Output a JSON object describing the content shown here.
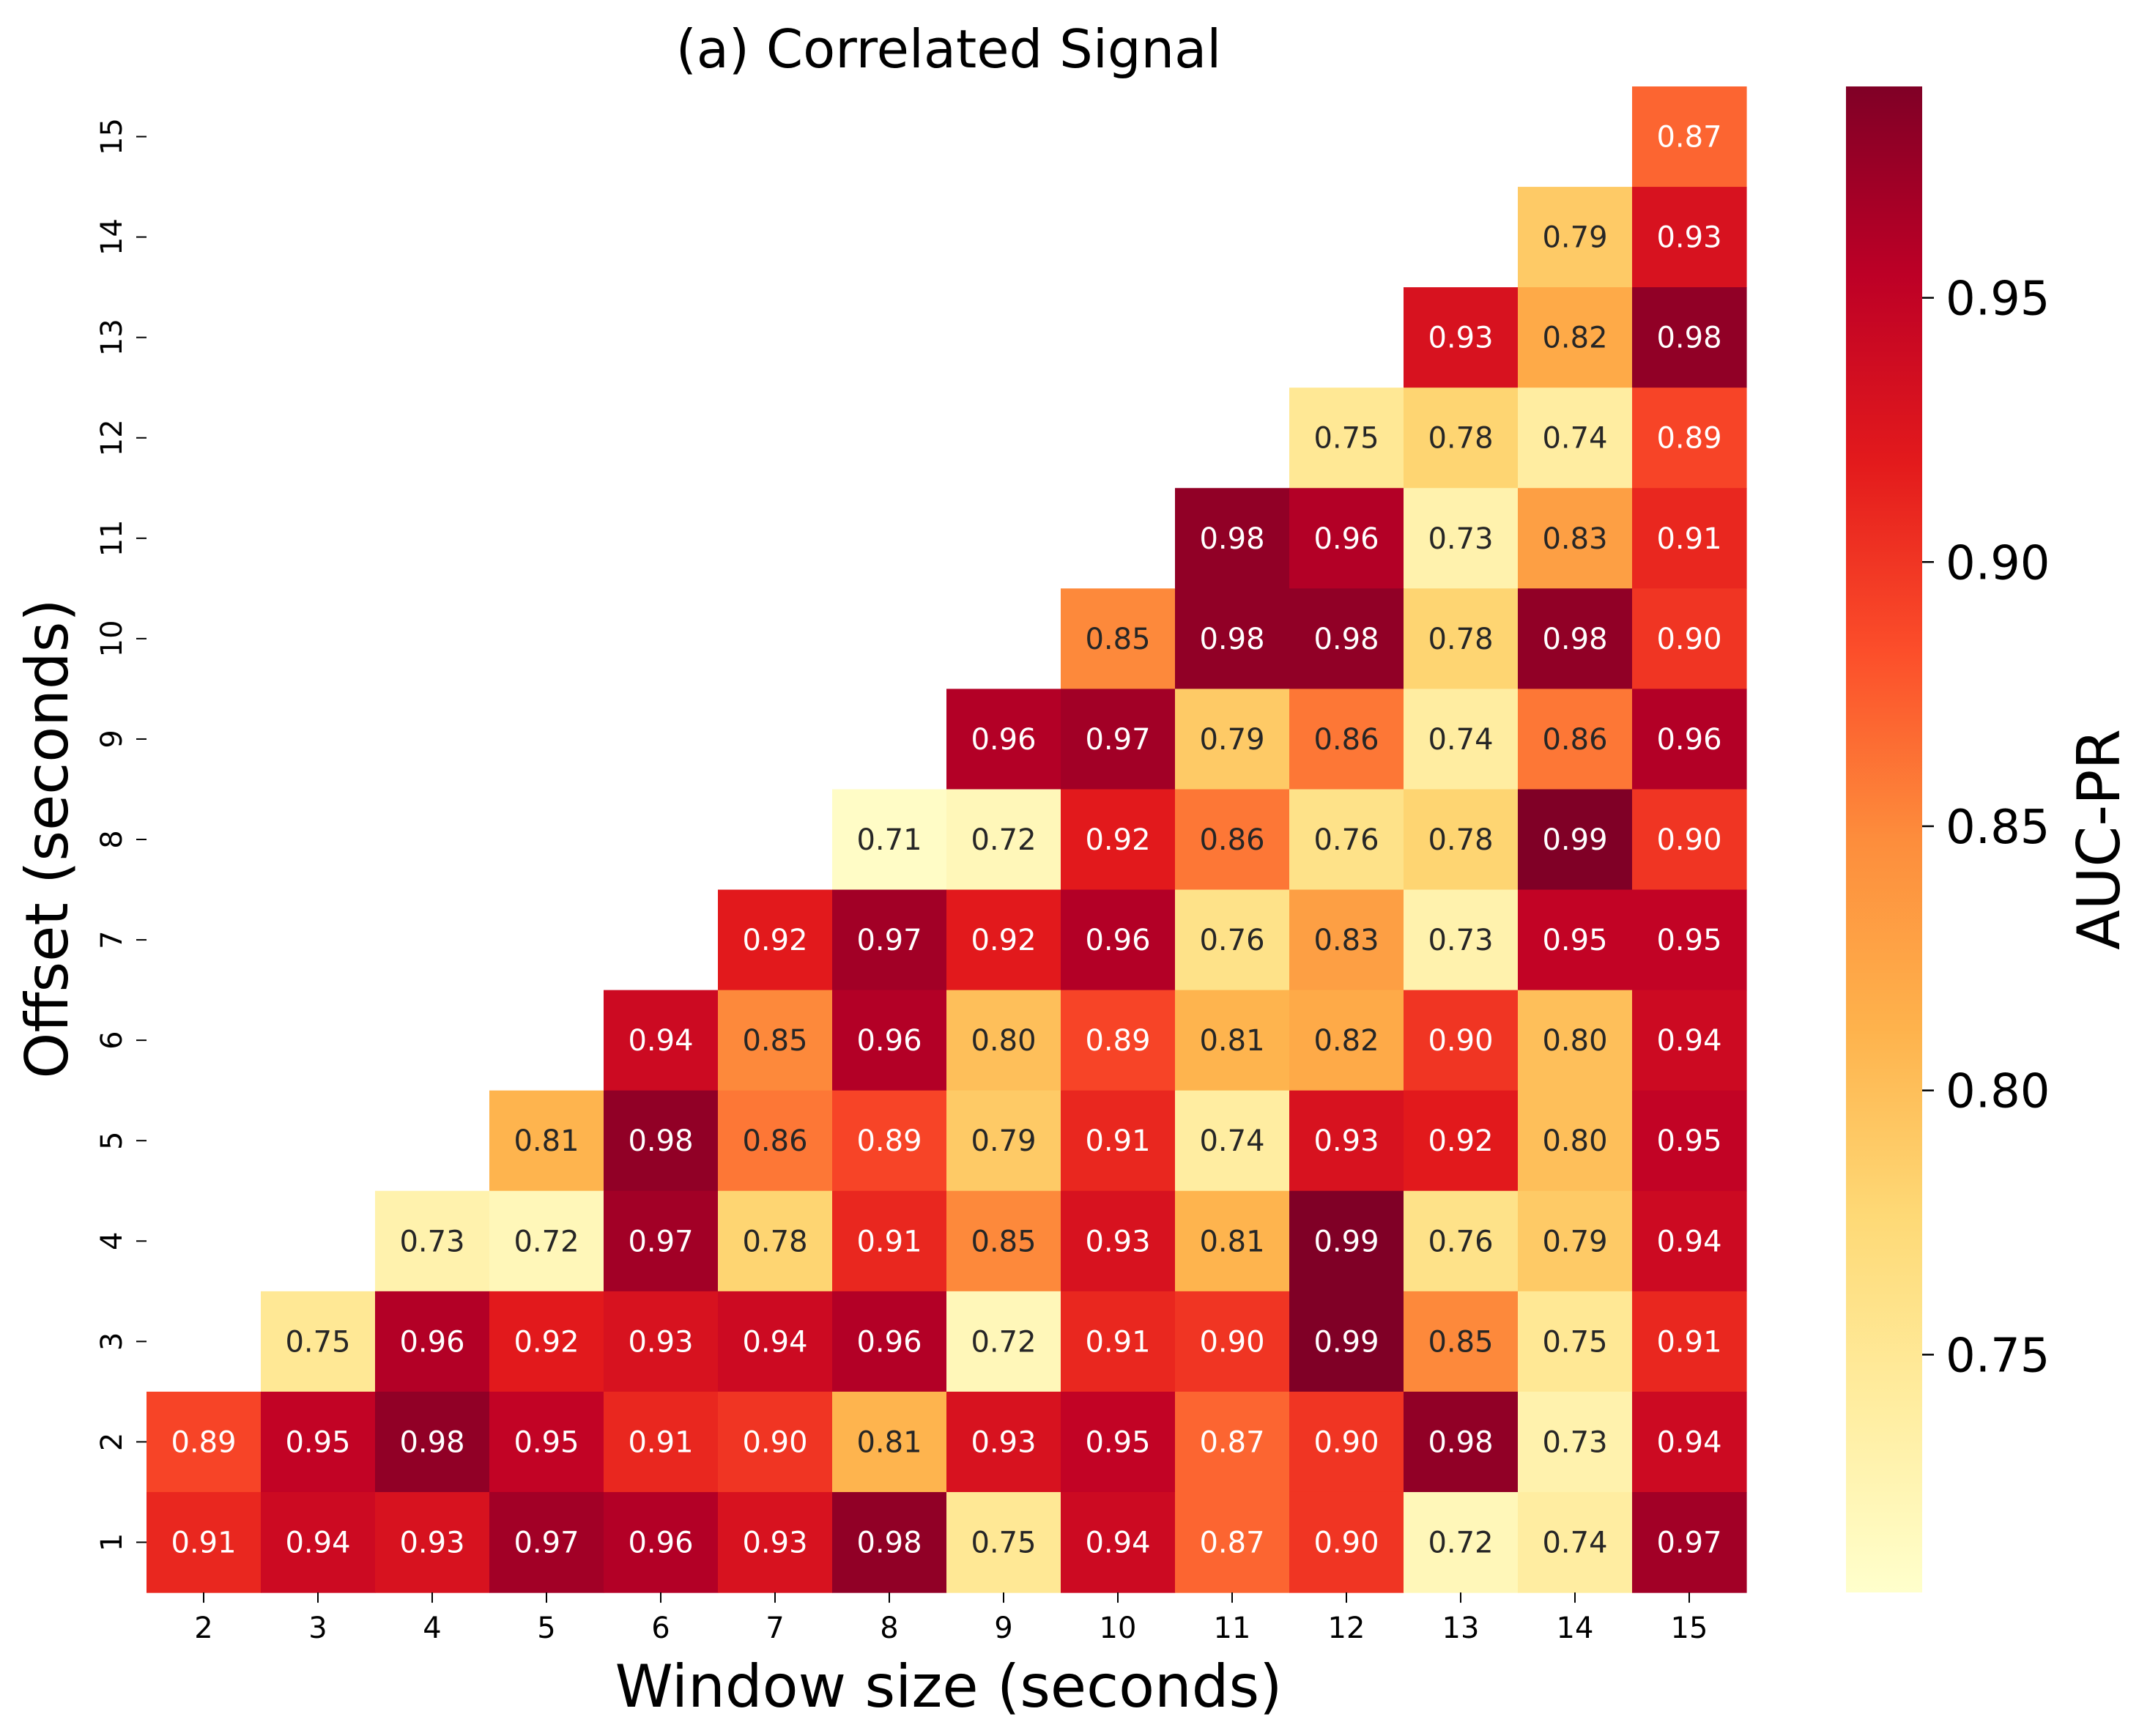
{
  "chart_data": {
    "type": "heatmap",
    "title": "(a) Correlated Signal",
    "xlabel": "Window size (seconds)",
    "ylabel": "Offset (seconds)",
    "x_categories": [
      "2",
      "3",
      "4",
      "5",
      "6",
      "7",
      "8",
      "9",
      "10",
      "11",
      "12",
      "13",
      "14",
      "15"
    ],
    "y_categories": [
      "15",
      "14",
      "13",
      "12",
      "11",
      "10",
      "9",
      "8",
      "7",
      "6",
      "5",
      "4",
      "3",
      "2",
      "1"
    ],
    "colormap": "YlOrRd",
    "value_range": [
      0.705,
      0.99
    ],
    "colorbar": {
      "label": "AUC-PR",
      "ticks": [
        "0.75",
        "0.80",
        "0.85",
        "0.90",
        "0.95"
      ]
    },
    "values": [
      [
        null,
        null,
        null,
        null,
        null,
        null,
        null,
        null,
        null,
        null,
        null,
        null,
        null,
        0.87
      ],
      [
        null,
        null,
        null,
        null,
        null,
        null,
        null,
        null,
        null,
        null,
        null,
        null,
        0.79,
        0.93
      ],
      [
        null,
        null,
        null,
        null,
        null,
        null,
        null,
        null,
        null,
        null,
        null,
        0.93,
        0.82,
        0.98
      ],
      [
        null,
        null,
        null,
        null,
        null,
        null,
        null,
        null,
        null,
        null,
        0.75,
        0.78,
        0.74,
        0.89
      ],
      [
        null,
        null,
        null,
        null,
        null,
        null,
        null,
        null,
        null,
        0.98,
        0.96,
        0.73,
        0.83,
        0.91
      ],
      [
        null,
        null,
        null,
        null,
        null,
        null,
        null,
        null,
        0.85,
        0.98,
        0.98,
        0.78,
        0.98,
        0.9
      ],
      [
        null,
        null,
        null,
        null,
        null,
        null,
        null,
        0.96,
        0.97,
        0.79,
        0.86,
        0.74,
        0.86,
        0.96
      ],
      [
        null,
        null,
        null,
        null,
        null,
        null,
        0.71,
        0.72,
        0.92,
        0.86,
        0.76,
        0.78,
        0.99,
        0.9
      ],
      [
        null,
        null,
        null,
        null,
        null,
        0.92,
        0.97,
        0.92,
        0.96,
        0.76,
        0.83,
        0.73,
        0.95,
        0.95
      ],
      [
        null,
        null,
        null,
        null,
        0.94,
        0.85,
        0.96,
        0.8,
        0.89,
        0.81,
        0.82,
        0.9,
        0.8,
        0.94
      ],
      [
        null,
        null,
        null,
        0.81,
        0.98,
        0.86,
        0.89,
        0.79,
        0.91,
        0.74,
        0.93,
        0.92,
        0.8,
        0.95
      ],
      [
        null,
        null,
        0.73,
        0.72,
        0.97,
        0.78,
        0.91,
        0.85,
        0.93,
        0.81,
        0.99,
        0.76,
        0.79,
        0.94
      ],
      [
        null,
        0.75,
        0.96,
        0.92,
        0.93,
        0.94,
        0.96,
        0.72,
        0.91,
        0.9,
        0.99,
        0.85,
        0.75,
        0.91
      ],
      [
        0.89,
        0.95,
        0.98,
        0.95,
        0.91,
        0.9,
        0.81,
        0.93,
        0.95,
        0.87,
        0.9,
        0.98,
        0.73,
        0.94
      ],
      [
        0.91,
        0.94,
        0.93,
        0.97,
        0.96,
        0.93,
        0.98,
        0.75,
        0.94,
        0.87,
        0.9,
        0.72,
        0.74,
        0.97
      ]
    ]
  }
}
